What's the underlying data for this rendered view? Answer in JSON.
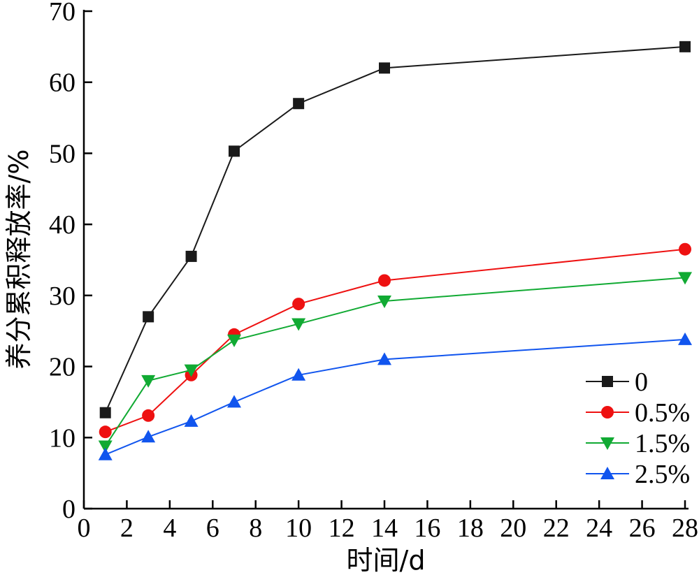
{
  "chart_data": {
    "type": "line",
    "xlabel": "时间/d",
    "ylabel": "养分累积释放率/%",
    "xlim": [
      0,
      28
    ],
    "ylim": [
      0,
      70
    ],
    "xticks": [
      0,
      2,
      4,
      6,
      8,
      10,
      12,
      14,
      16,
      18,
      20,
      22,
      24,
      26,
      28
    ],
    "yticks": [
      0,
      10,
      20,
      30,
      40,
      50,
      60,
      70
    ],
    "grid": false,
    "legend_position": "bottom-right",
    "x": [
      1,
      3,
      5,
      7,
      10,
      14,
      28
    ],
    "series": [
      {
        "name": "0",
        "color": "#1a1a1a",
        "marker": "square",
        "values": [
          13.5,
          27,
          35.5,
          50.3,
          57,
          62,
          65
        ]
      },
      {
        "name": "0.5%",
        "color": "#ee1111",
        "marker": "circle",
        "values": [
          10.8,
          13.1,
          18.8,
          24.5,
          28.8,
          32.1,
          36.5
        ]
      },
      {
        "name": "1.5%",
        "color": "#11aa33",
        "marker": "triangle-down",
        "values": [
          8.8,
          18,
          19.5,
          23.7,
          26,
          29.2,
          32.5
        ]
      },
      {
        "name": "2.5%",
        "color": "#1155ee",
        "marker": "triangle-up",
        "values": [
          7.6,
          10.1,
          12.3,
          15,
          18.8,
          21,
          23.8
        ]
      }
    ]
  }
}
